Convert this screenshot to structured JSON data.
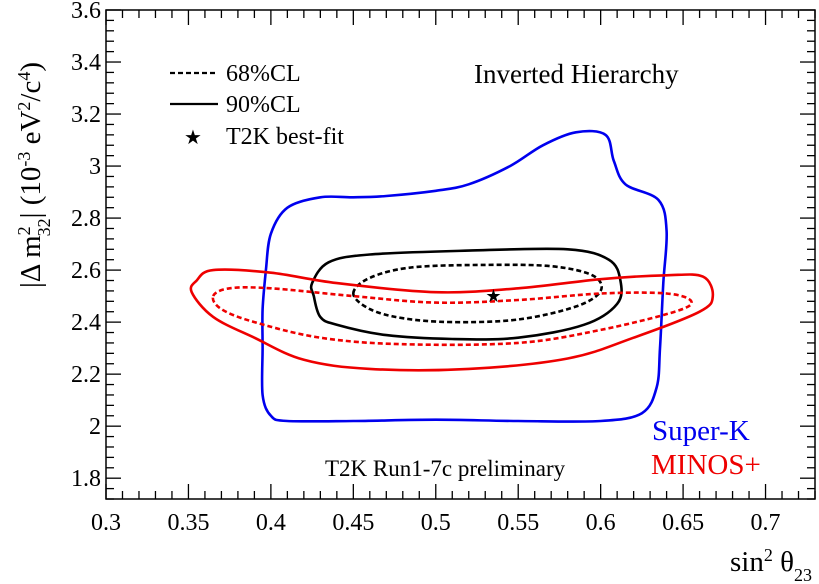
{
  "chart_data": {
    "type": "contour",
    "title": "",
    "x_ticks": [
      "0.3",
      "0.35",
      "0.4",
      "0.45",
      "0.5",
      "0.55",
      "0.6",
      "0.65",
      "0.7"
    ],
    "y_ticks": [
      "1.8",
      "2",
      "2.2",
      "2.4",
      "2.6",
      "2.8",
      "3",
      "3.2",
      "3.4",
      "3.6"
    ],
    "xlim": [
      0.3,
      0.73
    ],
    "ylim": [
      1.72,
      3.6
    ],
    "xlabel": {
      "prefix": "sin",
      "sup": "2",
      "symbol": " θ",
      "sub": "23"
    },
    "ylabel": {
      "open": "|Δ m",
      "sup": "2",
      "sub": "32",
      "close": "| (10",
      "exp": "-3",
      "unit1": " eV",
      "sup2": "2",
      "unit2": "/c",
      "sup3": "4",
      "end": ")"
    },
    "annotations": {
      "hierarchy": "Inverted Hierarchy",
      "preliminary": "T2K Run1-7c preliminary",
      "superk": "Super-K",
      "minos": "MINOS+"
    },
    "legend": {
      "position": "top-left",
      "entries": [
        {
          "label": "68%CL",
          "style": "dashed"
        },
        {
          "label": "90%CL",
          "style": "solid"
        },
        {
          "label": "T2K best-fit",
          "style": "star"
        }
      ]
    },
    "best_fit": {
      "x": 0.535,
      "y": 2.5
    },
    "series": [
      {
        "name": "Super-K 90%CL",
        "color": "#0000ee",
        "style": "solid",
        "points": [
          [
            0.41,
            2.02
          ],
          [
            0.45,
            2.02
          ],
          [
            0.5,
            2.025
          ],
          [
            0.55,
            2.02
          ],
          [
            0.6,
            2.02
          ],
          [
            0.625,
            2.05
          ],
          [
            0.634,
            2.15
          ],
          [
            0.636,
            2.3
          ],
          [
            0.638,
            2.55
          ],
          [
            0.64,
            2.75
          ],
          [
            0.635,
            2.87
          ],
          [
            0.615,
            2.93
          ],
          [
            0.608,
            3.02
          ],
          [
            0.603,
            3.12
          ],
          [
            0.585,
            3.13
          ],
          [
            0.565,
            3.08
          ],
          [
            0.545,
            3.0
          ],
          [
            0.52,
            2.93
          ],
          [
            0.5,
            2.905
          ],
          [
            0.47,
            2.885
          ],
          [
            0.45,
            2.88
          ],
          [
            0.43,
            2.88
          ],
          [
            0.41,
            2.84
          ],
          [
            0.4,
            2.74
          ],
          [
            0.397,
            2.6
          ],
          [
            0.395,
            2.45
          ],
          [
            0.395,
            2.3
          ],
          [
            0.395,
            2.12
          ],
          [
            0.4,
            2.04
          ]
        ]
      },
      {
        "name": "T2K 90%CL",
        "color": "#000000",
        "style": "solid",
        "points": [
          [
            0.425,
            2.55
          ],
          [
            0.435,
            2.63
          ],
          [
            0.46,
            2.66
          ],
          [
            0.52,
            2.675
          ],
          [
            0.58,
            2.68
          ],
          [
            0.605,
            2.64
          ],
          [
            0.612,
            2.56
          ],
          [
            0.61,
            2.47
          ],
          [
            0.59,
            2.39
          ],
          [
            0.55,
            2.34
          ],
          [
            0.51,
            2.335
          ],
          [
            0.47,
            2.35
          ],
          [
            0.44,
            2.39
          ],
          [
            0.43,
            2.42
          ],
          [
            0.426,
            2.5
          ]
        ]
      },
      {
        "name": "T2K 68%CL",
        "color": "#000000",
        "style": "dashed",
        "points": [
          [
            0.45,
            2.51
          ],
          [
            0.46,
            2.57
          ],
          [
            0.485,
            2.61
          ],
          [
            0.53,
            2.62
          ],
          [
            0.57,
            2.615
          ],
          [
            0.595,
            2.58
          ],
          [
            0.6,
            2.52
          ],
          [
            0.585,
            2.46
          ],
          [
            0.55,
            2.41
          ],
          [
            0.51,
            2.4
          ],
          [
            0.48,
            2.415
          ],
          [
            0.46,
            2.45
          ]
        ]
      },
      {
        "name": "MINOS+ 90%CL",
        "color": "#ee0000",
        "style": "solid",
        "points": [
          [
            0.352,
            2.515
          ],
          [
            0.355,
            2.56
          ],
          [
            0.365,
            2.6
          ],
          [
            0.4,
            2.59
          ],
          [
            0.44,
            2.55
          ],
          [
            0.5,
            2.515
          ],
          [
            0.55,
            2.53
          ],
          [
            0.6,
            2.565
          ],
          [
            0.64,
            2.58
          ],
          [
            0.662,
            2.575
          ],
          [
            0.668,
            2.5
          ],
          [
            0.66,
            2.44
          ],
          [
            0.62,
            2.34
          ],
          [
            0.58,
            2.26
          ],
          [
            0.52,
            2.22
          ],
          [
            0.46,
            2.22
          ],
          [
            0.42,
            2.255
          ],
          [
            0.39,
            2.34
          ],
          [
            0.365,
            2.42
          ]
        ]
      },
      {
        "name": "MINOS+ 68%CL",
        "color": "#ee0000",
        "style": "dashed",
        "points": [
          [
            0.365,
            2.5
          ],
          [
            0.375,
            2.53
          ],
          [
            0.4,
            2.53
          ],
          [
            0.45,
            2.5
          ],
          [
            0.5,
            2.475
          ],
          [
            0.55,
            2.485
          ],
          [
            0.6,
            2.51
          ],
          [
            0.64,
            2.51
          ],
          [
            0.655,
            2.48
          ],
          [
            0.645,
            2.44
          ],
          [
            0.6,
            2.37
          ],
          [
            0.55,
            2.32
          ],
          [
            0.48,
            2.315
          ],
          [
            0.43,
            2.34
          ],
          [
            0.39,
            2.4
          ],
          [
            0.37,
            2.45
          ]
        ]
      }
    ]
  }
}
